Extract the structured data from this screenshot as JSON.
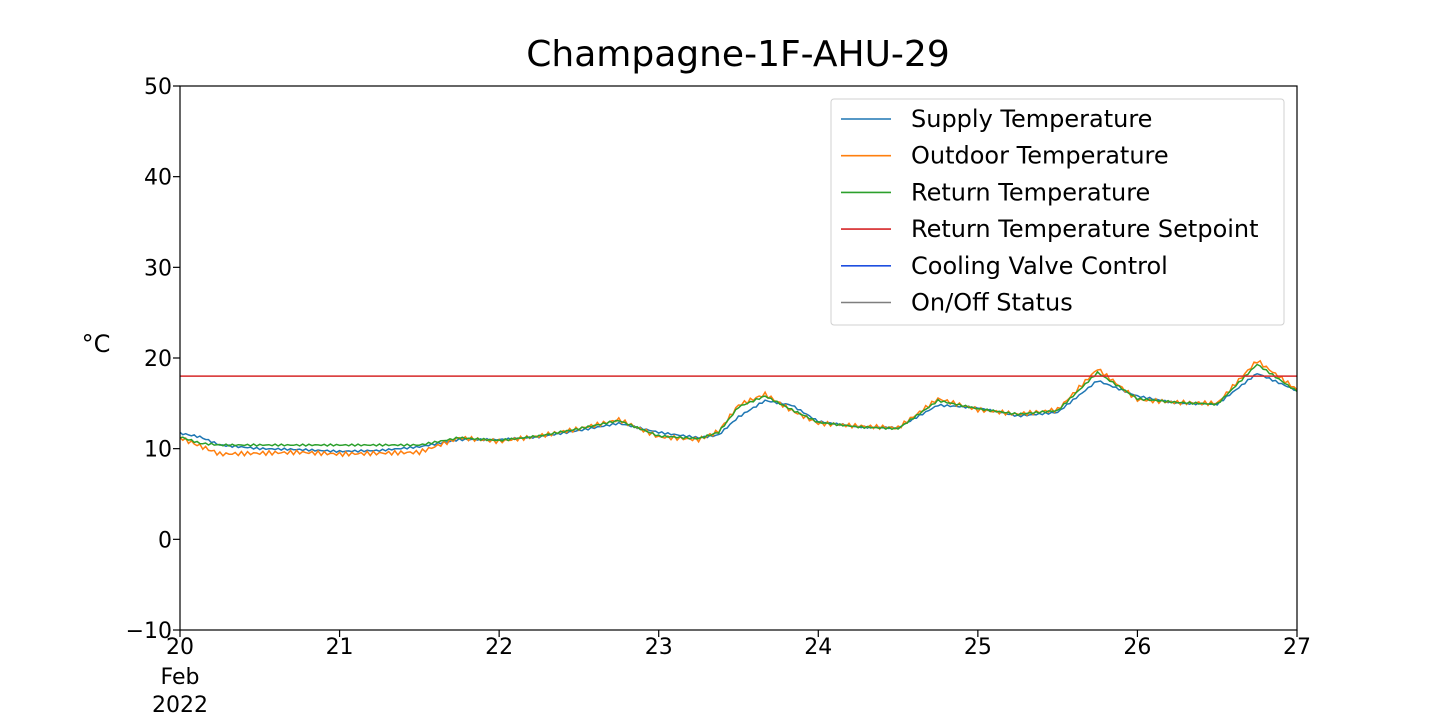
{
  "chart_data": {
    "type": "line",
    "title": "Champagne-1F-AHU-29",
    "ylabel": "°C",
    "xlabel": "",
    "ylim": [
      -10,
      50
    ],
    "xlim": [
      "2022-02-20",
      "2022-02-27"
    ],
    "x_ticks": [
      {
        "value": "2022-02-20",
        "label": "20"
      },
      {
        "value": "2022-02-21",
        "label": "21"
      },
      {
        "value": "2022-02-22",
        "label": "22"
      },
      {
        "value": "2022-02-23",
        "label": "23"
      },
      {
        "value": "2022-02-24",
        "label": "24"
      },
      {
        "value": "2022-02-25",
        "label": "25"
      },
      {
        "value": "2022-02-26",
        "label": "26"
      },
      {
        "value": "2022-02-27",
        "label": "27"
      }
    ],
    "x_tick_sublabels": [
      "Feb",
      "2022"
    ],
    "y_ticks": [
      -10,
      0,
      10,
      20,
      30,
      40,
      50
    ],
    "y_tick_labels": [
      "−10",
      "0",
      "10",
      "20",
      "30",
      "40",
      "50"
    ],
    "grid": false,
    "legend_position": "top-right",
    "series": [
      {
        "name": "Supply Temperature",
        "color": "#1f77b4",
        "points": [
          [
            "2022-02-20 00:00",
            11.7
          ],
          [
            "2022-02-20 03:00",
            11.3
          ],
          [
            "2022-02-20 06:00",
            10.4
          ],
          [
            "2022-02-20 12:00",
            10.0
          ],
          [
            "2022-02-20 18:00",
            9.9
          ],
          [
            "2022-02-21 00:00",
            9.7
          ],
          [
            "2022-02-21 06:00",
            9.8
          ],
          [
            "2022-02-21 12:00",
            10.2
          ],
          [
            "2022-02-21 18:00",
            11.0
          ],
          [
            "2022-02-22 00:00",
            11.0
          ],
          [
            "2022-02-22 06:00",
            11.3
          ],
          [
            "2022-02-22 12:00",
            12.0
          ],
          [
            "2022-02-22 18:00",
            12.8
          ],
          [
            "2022-02-23 00:00",
            11.8
          ],
          [
            "2022-02-23 06:00",
            11.2
          ],
          [
            "2022-02-23 09:00",
            11.5
          ],
          [
            "2022-02-23 12:00",
            13.5
          ],
          [
            "2022-02-23 16:00",
            15.3
          ],
          [
            "2022-02-23 20:00",
            14.8
          ],
          [
            "2022-02-24 00:00",
            13.0
          ],
          [
            "2022-02-24 06:00",
            12.4
          ],
          [
            "2022-02-24 12:00",
            12.3
          ],
          [
            "2022-02-24 18:00",
            14.8
          ],
          [
            "2022-02-25 00:00",
            14.5
          ],
          [
            "2022-02-25 06:00",
            13.6
          ],
          [
            "2022-02-25 12:00",
            14.0
          ],
          [
            "2022-02-25 18:00",
            17.5
          ],
          [
            "2022-02-26 00:00",
            15.8
          ],
          [
            "2022-02-26 06:00",
            15.0
          ],
          [
            "2022-02-26 12:00",
            14.9
          ],
          [
            "2022-02-26 18:00",
            18.3
          ],
          [
            "2022-02-27 00:00",
            16.4
          ]
        ]
      },
      {
        "name": "Outdoor Temperature",
        "color": "#ff7f0e",
        "points": [
          [
            "2022-02-20 00:00",
            11.2
          ],
          [
            "2022-02-20 03:00",
            10.3
          ],
          [
            "2022-02-20 06:00",
            9.4
          ],
          [
            "2022-02-20 12:00",
            9.5
          ],
          [
            "2022-02-20 18:00",
            9.6
          ],
          [
            "2022-02-21 00:00",
            9.4
          ],
          [
            "2022-02-21 06:00",
            9.5
          ],
          [
            "2022-02-21 12:00",
            9.6
          ],
          [
            "2022-02-21 18:00",
            11.2
          ],
          [
            "2022-02-22 00:00",
            10.8
          ],
          [
            "2022-02-22 06:00",
            11.4
          ],
          [
            "2022-02-22 12:00",
            12.2
          ],
          [
            "2022-02-22 18:00",
            13.2
          ],
          [
            "2022-02-23 00:00",
            11.3
          ],
          [
            "2022-02-23 06:00",
            11.0
          ],
          [
            "2022-02-23 09:00",
            11.9
          ],
          [
            "2022-02-23 12:00",
            14.8
          ],
          [
            "2022-02-23 16:00",
            16.0
          ],
          [
            "2022-02-23 20:00",
            14.2
          ],
          [
            "2022-02-24 00:00",
            12.8
          ],
          [
            "2022-02-24 06:00",
            12.5
          ],
          [
            "2022-02-24 12:00",
            12.3
          ],
          [
            "2022-02-24 18:00",
            15.5
          ],
          [
            "2022-02-25 00:00",
            14.3
          ],
          [
            "2022-02-25 06:00",
            13.8
          ],
          [
            "2022-02-25 12:00",
            14.3
          ],
          [
            "2022-02-25 18:00",
            18.8
          ],
          [
            "2022-02-26 00:00",
            15.4
          ],
          [
            "2022-02-26 06:00",
            15.1
          ],
          [
            "2022-02-26 12:00",
            15.0
          ],
          [
            "2022-02-26 18:00",
            19.7
          ],
          [
            "2022-02-27 00:00",
            16.5
          ]
        ]
      },
      {
        "name": "Return Temperature",
        "color": "#2ca02c",
        "points": [
          [
            "2022-02-20 00:00",
            11.3
          ],
          [
            "2022-02-20 03:00",
            10.6
          ],
          [
            "2022-02-20 06:00",
            10.4
          ],
          [
            "2022-02-20 12:00",
            10.4
          ],
          [
            "2022-02-20 18:00",
            10.4
          ],
          [
            "2022-02-21 00:00",
            10.4
          ],
          [
            "2022-02-21 06:00",
            10.4
          ],
          [
            "2022-02-21 12:00",
            10.4
          ],
          [
            "2022-02-21 18:00",
            11.2
          ],
          [
            "2022-02-22 00:00",
            10.9
          ],
          [
            "2022-02-22 06:00",
            11.4
          ],
          [
            "2022-02-22 12:00",
            12.2
          ],
          [
            "2022-02-22 18:00",
            13.1
          ],
          [
            "2022-02-23 00:00",
            11.4
          ],
          [
            "2022-02-23 06:00",
            11.1
          ],
          [
            "2022-02-23 09:00",
            11.8
          ],
          [
            "2022-02-23 12:00",
            14.6
          ],
          [
            "2022-02-23 16:00",
            15.8
          ],
          [
            "2022-02-23 20:00",
            14.3
          ],
          [
            "2022-02-24 00:00",
            12.9
          ],
          [
            "2022-02-24 06:00",
            12.4
          ],
          [
            "2022-02-24 12:00",
            12.2
          ],
          [
            "2022-02-24 18:00",
            15.3
          ],
          [
            "2022-02-25 00:00",
            14.4
          ],
          [
            "2022-02-25 06:00",
            13.8
          ],
          [
            "2022-02-25 12:00",
            14.2
          ],
          [
            "2022-02-25 18:00",
            18.4
          ],
          [
            "2022-02-26 00:00",
            15.5
          ],
          [
            "2022-02-26 06:00",
            15.1
          ],
          [
            "2022-02-26 12:00",
            14.9
          ],
          [
            "2022-02-26 18:00",
            19.3
          ],
          [
            "2022-02-27 00:00",
            16.3
          ]
        ]
      },
      {
        "name": "Return Temperature Setpoint",
        "color": "#d62728",
        "points": [
          [
            "2022-02-20 00:00",
            18.0
          ],
          [
            "2022-02-27 00:00",
            18.0
          ]
        ]
      },
      {
        "name": "Cooling Valve Control",
        "color": "#1f4fe0",
        "points": []
      },
      {
        "name": "On/Off Status",
        "color": "#7f7f7f",
        "points": []
      }
    ]
  }
}
